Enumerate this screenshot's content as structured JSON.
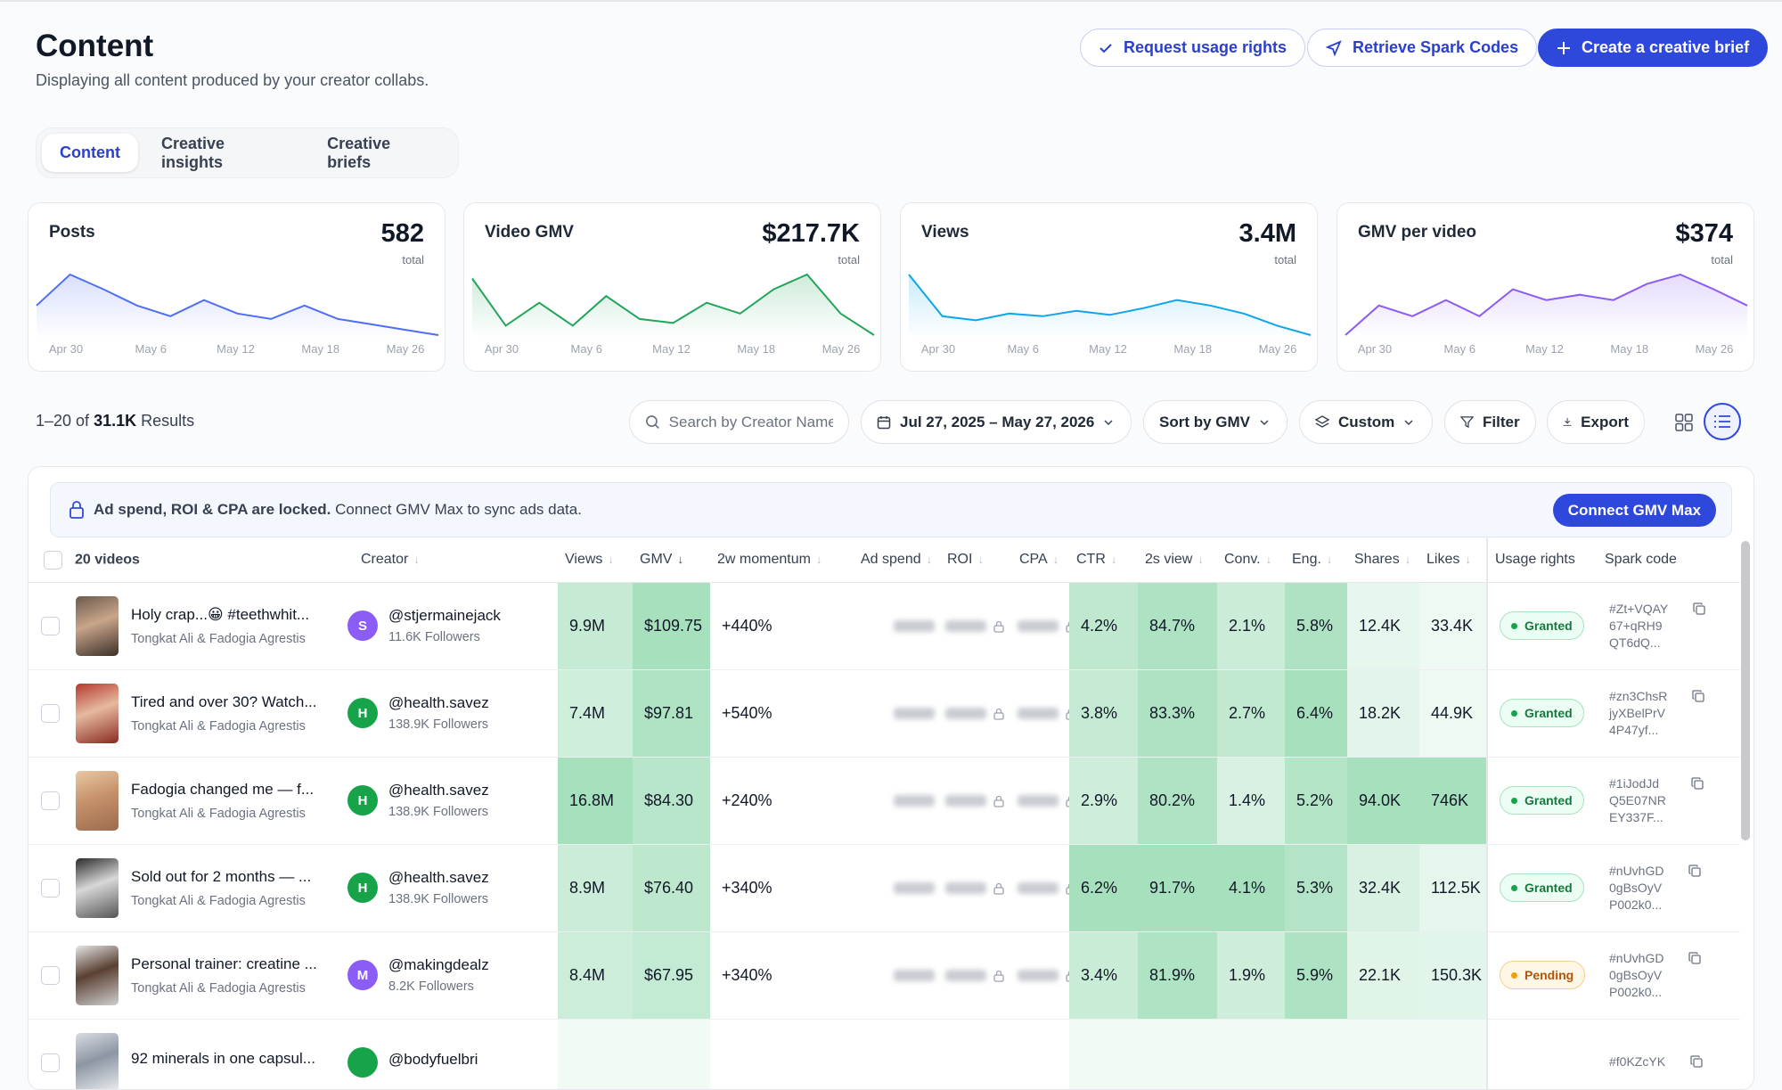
{
  "header": {
    "title": "Content",
    "subtitle": "Displaying all content produced by your creator collabs.",
    "actions": [
      "Request usage rights",
      "Retrieve Spark Codes",
      "Create a creative brief"
    ]
  },
  "tabs": [
    "Content",
    "Creative insights",
    "Creative briefs"
  ],
  "chart_data": [
    {
      "type": "line",
      "title": "Posts",
      "total": 582,
      "total_label": "total",
      "x_labels": [
        "Apr 30",
        "May 6",
        "May 12",
        "May 18",
        "May 26"
      ],
      "values": [
        30,
        53,
        42,
        30,
        22,
        34,
        24,
        20,
        30,
        20,
        16,
        12,
        8
      ],
      "color": "#4f6ef7"
    },
    {
      "type": "line",
      "title": "Video GMV",
      "total": "$217.7K",
      "total_label": "total",
      "x_labels": [
        "Apr 30",
        "May 6",
        "May 12",
        "May 18",
        "May 26"
      ],
      "values": [
        50,
        15,
        32,
        15,
        37,
        20,
        17,
        32,
        24,
        42,
        53,
        24,
        8
      ],
      "color": "#22a55b"
    },
    {
      "type": "line",
      "title": "Views",
      "total": "3.4M",
      "total_label": "total",
      "x_labels": [
        "Apr 30",
        "May 6",
        "May 12",
        "May 18",
        "May 26"
      ],
      "values": [
        53,
        22,
        19,
        24,
        22,
        26,
        23,
        28,
        34,
        30,
        24,
        15,
        8
      ],
      "color": "#0ea5e9"
    },
    {
      "type": "line",
      "title": "GMV per video",
      "total": "$374",
      "total_label": "total",
      "x_labels": [
        "Apr 30",
        "May 6",
        "May 12",
        "May 18",
        "May 26"
      ],
      "values": [
        8,
        30,
        22,
        34,
        22,
        42,
        34,
        38,
        34,
        46,
        53,
        42,
        30
      ],
      "color": "#8b5cf6"
    }
  ],
  "toolbar": {
    "range": "1–20 of",
    "count": "31.1K",
    "results": "Results",
    "search_placeholder": "Search by Creator Name",
    "date_range": "Jul 27, 2025 – May 27, 2026",
    "sort": "Sort by GMV",
    "view": "Custom",
    "filter": "Filter",
    "export": "Export"
  },
  "banner": {
    "bold": "Ad spend, ROI & CPA are locked.",
    "text": " Connect GMV Max to sync ads data.",
    "action": "Connect GMV Max"
  },
  "table": {
    "columns": [
      "20 videos",
      "Creator",
      "Views",
      "GMV",
      "2w momentum",
      "Ad spend",
      "ROI",
      "CPA",
      "CTR",
      "2s view",
      "Conv.",
      "Eng.",
      "Shares",
      "Likes",
      "Usage rights",
      "Spark code"
    ],
    "rows": [
      {
        "title": "Holy crap...😀 #teethwhit...",
        "product": "Tongkat Ali & Fadogia Agrestis",
        "avatar": "S",
        "creator": "@stjermainejack",
        "followers": "11.6K Followers",
        "views": "9.9M",
        "gmv": "$109.75",
        "momentum": "+440%",
        "ctr": "4.2%",
        "view2s": "84.7%",
        "conv": "2.1%",
        "eng": "5.8%",
        "shares": "12.4K",
        "likes": "33.4K",
        "usage": "Granted",
        "spark": [
          "#Zt+VQAY",
          "67+qRH9",
          "QT6dQ..."
        ]
      },
      {
        "title": "Tired and over 30? Watch...",
        "product": "Tongkat Ali & Fadogia Agrestis",
        "avatar": "H",
        "creator": "@health.savez",
        "followers": "138.9K Followers",
        "views": "7.4M",
        "gmv": "$97.81",
        "momentum": "+540%",
        "ctr": "3.8%",
        "view2s": "83.3%",
        "conv": "2.7%",
        "eng": "6.4%",
        "shares": "18.2K",
        "likes": "44.9K",
        "usage": "Granted",
        "spark": [
          "#zn3ChsR",
          "jyXBelPrV",
          "4P47yf..."
        ]
      },
      {
        "title": "Fadogia changed me — f...",
        "product": "Tongkat Ali & Fadogia Agrestis",
        "avatar": "H",
        "creator": "@health.savez",
        "followers": "138.9K Followers",
        "views": "16.8M",
        "gmv": "$84.30",
        "momentum": "+240%",
        "ctr": "2.9%",
        "view2s": "80.2%",
        "conv": "1.4%",
        "eng": "5.2%",
        "shares": "94.0K",
        "likes": "746K",
        "usage": "Granted",
        "spark": [
          "#1iJodJd",
          "Q5E07NR",
          "EY337F..."
        ]
      },
      {
        "title": "Sold out for 2 months — ...",
        "product": "Tongkat Ali & Fadogia Agrestis",
        "avatar": "H",
        "creator": "@health.savez",
        "followers": "138.9K Followers",
        "views": "8.9M",
        "gmv": "$76.40",
        "momentum": "+340%",
        "ctr": "6.2%",
        "view2s": "91.7%",
        "conv": "4.1%",
        "eng": "5.3%",
        "shares": "32.4K",
        "likes": "112.5K",
        "usage": "Granted",
        "spark": [
          "#nUvhGD",
          "0gBsOyV",
          "P002k0..."
        ]
      },
      {
        "title": "Personal trainer: creatine ...",
        "product": "Tongkat Ali & Fadogia Agrestis",
        "avatar": "M",
        "creator": "@makingdealz",
        "followers": "8.2K Followers",
        "views": "8.4M",
        "gmv": "$67.95",
        "momentum": "+340%",
        "ctr": "3.4%",
        "view2s": "81.9%",
        "conv": "1.9%",
        "eng": "5.9%",
        "shares": "22.1K",
        "likes": "150.3K",
        "usage": "Pending",
        "spark": [
          "#nUvhGD",
          "0gBsOyV",
          "P002k0..."
        ]
      },
      {
        "title": "92 minerals in one capsul...",
        "creator": "@bodyfuelbri",
        "spark": [
          "#f0KZcYK"
        ]
      }
    ]
  }
}
